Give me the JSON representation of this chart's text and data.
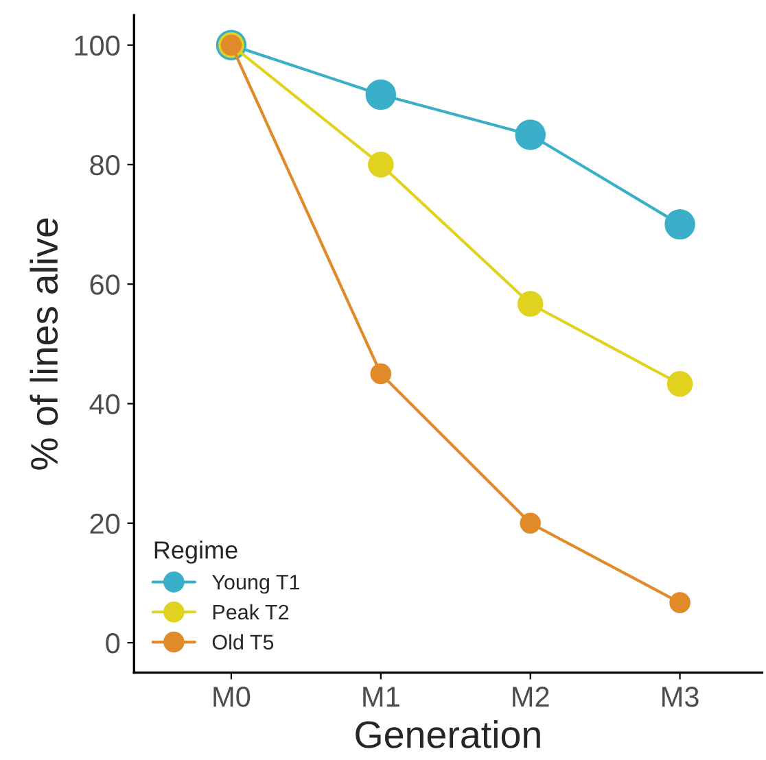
{
  "chart_data": {
    "type": "line",
    "xlabel": "Generation",
    "ylabel": "% of lines alive",
    "legend_title": "Regime",
    "categories": [
      "M0",
      "M1",
      "M2",
      "M3"
    ],
    "series": [
      {
        "name": "Young T1",
        "color": "#3aafc9",
        "values": [
          100,
          91.7,
          85,
          70
        ]
      },
      {
        "name": "Peak T2",
        "color": "#e0d21e",
        "values": [
          100,
          80,
          56.7,
          43.3
        ]
      },
      {
        "name": "Old T5",
        "color": "#e08a2a",
        "values": [
          100,
          45,
          20,
          6.7
        ]
      }
    ],
    "ylim": [
      -5,
      105
    ],
    "yticks": [
      0,
      20,
      40,
      60,
      80,
      100
    ],
    "grid": false,
    "legend": "bottom left",
    "marker": "circle",
    "line_style": "solid"
  }
}
